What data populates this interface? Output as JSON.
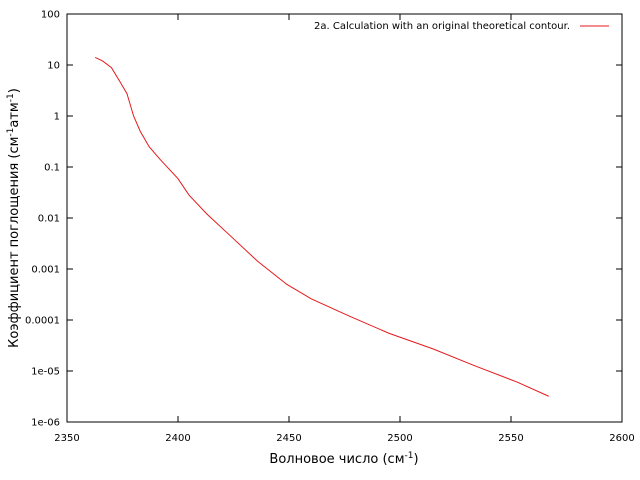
{
  "chart_data": {
    "type": "line",
    "scale_y": "log",
    "xlim": [
      2350,
      2600
    ],
    "ylim": [
      1e-06,
      100
    ],
    "grid": false,
    "legend_position": "top-right",
    "xlabel": "Волновое число (см",
    "xlabel_sup": "-1",
    "xlabel_end": ")",
    "ylabel": "Коэффициент поглощения (см",
    "ylabel_sup1": "-1",
    "ylabel_mid": "атм",
    "ylabel_sup2": "-1",
    "ylabel_end": ")",
    "x_ticks": [
      2350,
      2400,
      2450,
      2500,
      2550,
      2600
    ],
    "x_tick_labels": [
      "2350",
      "2400",
      "2450",
      "2500",
      "2550",
      "2600"
    ],
    "y_ticks": [
      100,
      10,
      1,
      0.1,
      0.01,
      0.001,
      0.0001,
      1e-05,
      1e-06
    ],
    "y_tick_labels": [
      "100",
      "10",
      "1",
      "0.1",
      "0.01",
      "0.001",
      "0.0001",
      "1e-05",
      "1e-06"
    ],
    "series": [
      {
        "name": "2a. Calculation with an original theoretical contour.",
        "color": "#e41a1c",
        "x": [
          2362.7,
          2366.0,
          2370.0,
          2374.0,
          2377.0,
          2380.0,
          2383.0,
          2387.0,
          2392.0,
          2400.0,
          2405.0,
          2413.0,
          2424.0,
          2436.0,
          2449.0,
          2460.0,
          2477.0,
          2495.0,
          2515.0,
          2533.0,
          2553.0,
          2567.0
        ],
        "y": [
          14.1,
          12.0,
          8.9,
          4.6,
          2.75,
          1.0,
          0.5,
          0.25,
          0.14,
          0.059,
          0.028,
          0.012,
          0.0043,
          0.0014,
          0.0005,
          0.00026,
          0.00012,
          5.5e-05,
          2.7e-05,
          1.3e-05,
          6e-06,
          3.2e-06
        ]
      }
    ]
  }
}
